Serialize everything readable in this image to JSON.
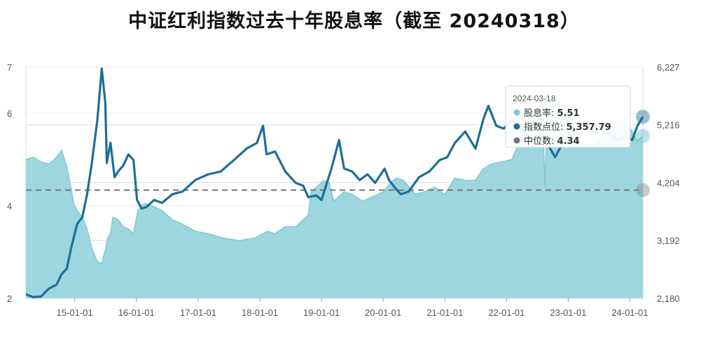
{
  "title": "中证红利指数过去十年股息率（截至 20240318）",
  "colors": {
    "dividend_fill": "#9dd6df",
    "dividend_line": "#7fc8d3",
    "index_line": "#1e6e96",
    "median_line": "#777777",
    "grid": "#d9dde2"
  },
  "tooltip": {
    "date": "2024-03-18",
    "rows": [
      {
        "label": "股息率:",
        "value": "5.51",
        "color": "#7fc8d3"
      },
      {
        "label": "指数点位:",
        "value": "5,357.79",
        "color": "#1e6e96"
      },
      {
        "label": "中位数:",
        "value": "4.34",
        "color": "#777777"
      }
    ]
  },
  "chart_data": {
    "type": "line",
    "title": "中证红利指数过去十年股息率（截至 20240318）",
    "x_ticks": [
      "15-01-01",
      "16-01-01",
      "17-01-01",
      "18-01-01",
      "19-01-01",
      "20-01-01",
      "21-01-01",
      "22-01-01",
      "23-01-01",
      "24-01-01"
    ],
    "y_left_ticks": [
      "2",
      "4",
      "6",
      "7"
    ],
    "y_left_range": [
      2,
      7
    ],
    "y_right_ticks": [
      "2,180",
      "3,192",
      "4,204",
      "5,216",
      "6,227"
    ],
    "y_right_range": [
      2180,
      6227
    ],
    "median": 4.34,
    "series": [
      {
        "name": "股息率",
        "axis": "left",
        "style": "area",
        "points": [
          [
            "2014-03-18",
            5.0
          ],
          [
            "2014-05-01",
            5.05
          ],
          [
            "2014-06-15",
            4.95
          ],
          [
            "2014-08-01",
            4.9
          ],
          [
            "2014-09-15",
            5.05
          ],
          [
            "2014-10-15",
            5.2
          ],
          [
            "2014-11-15",
            4.85
          ],
          [
            "2014-12-10",
            4.4
          ],
          [
            "2014-12-25",
            4.05
          ],
          [
            "2015-01-15",
            3.9
          ],
          [
            "2015-02-15",
            3.75
          ],
          [
            "2015-03-15",
            3.5
          ],
          [
            "2015-04-15",
            3.05
          ],
          [
            "2015-05-15",
            2.8
          ],
          [
            "2015-06-10",
            2.75
          ],
          [
            "2015-07-01",
            3.05
          ],
          [
            "2015-07-15",
            3.3
          ],
          [
            "2015-08-01",
            3.4
          ],
          [
            "2015-08-15",
            3.75
          ],
          [
            "2015-09-15",
            3.7
          ],
          [
            "2015-10-15",
            3.55
          ],
          [
            "2015-11-15",
            3.5
          ],
          [
            "2015-12-15",
            3.4
          ],
          [
            "2016-01-10",
            3.9
          ],
          [
            "2016-02-15",
            4.05
          ],
          [
            "2016-04-01",
            4.0
          ],
          [
            "2016-06-01",
            3.9
          ],
          [
            "2016-08-01",
            3.7
          ],
          [
            "2016-10-01",
            3.6
          ],
          [
            "2016-12-15",
            3.45
          ],
          [
            "2017-03-01",
            3.4
          ],
          [
            "2017-06-01",
            3.3
          ],
          [
            "2017-09-01",
            3.25
          ],
          [
            "2017-12-01",
            3.3
          ],
          [
            "2018-02-15",
            3.45
          ],
          [
            "2018-04-01",
            3.4
          ],
          [
            "2018-06-01",
            3.55
          ],
          [
            "2018-08-01",
            3.55
          ],
          [
            "2018-10-15",
            3.8
          ],
          [
            "2018-11-01",
            4.3
          ],
          [
            "2018-12-01",
            4.4
          ],
          [
            "2019-01-15",
            4.55
          ],
          [
            "2019-02-15",
            4.5
          ],
          [
            "2019-03-15",
            4.1
          ],
          [
            "2019-05-15",
            4.3
          ],
          [
            "2019-07-01",
            4.25
          ],
          [
            "2019-09-01",
            4.1
          ],
          [
            "2019-11-01",
            4.2
          ],
          [
            "2020-01-01",
            4.3
          ],
          [
            "2020-02-15",
            4.5
          ],
          [
            "2020-03-20",
            4.6
          ],
          [
            "2020-05-01",
            4.55
          ],
          [
            "2020-07-10",
            4.25
          ],
          [
            "2020-09-01",
            4.3
          ],
          [
            "2020-11-01",
            4.4
          ],
          [
            "2021-01-01",
            4.25
          ],
          [
            "2021-03-01",
            4.6
          ],
          [
            "2021-05-01",
            4.55
          ],
          [
            "2021-07-01",
            4.55
          ],
          [
            "2021-08-15",
            4.8
          ],
          [
            "2021-10-01",
            4.9
          ],
          [
            "2021-12-01",
            4.95
          ],
          [
            "2022-02-01",
            5.0
          ],
          [
            "2022-04-01",
            5.5
          ],
          [
            "2022-05-15",
            5.6
          ],
          [
            "2022-07-01",
            6.0
          ],
          [
            "2022-08-01",
            6.6
          ],
          [
            "2022-08-15",
            4.4
          ],
          [
            "2022-09-01",
            6.2
          ],
          [
            "2022-10-15",
            6.4
          ],
          [
            "2022-12-01",
            6.0
          ],
          [
            "2023-02-01",
            5.7
          ],
          [
            "2023-04-01",
            5.3
          ],
          [
            "2023-06-01",
            5.3
          ],
          [
            "2023-08-01",
            5.5
          ],
          [
            "2023-10-15",
            5.8
          ],
          [
            "2023-12-01",
            5.9
          ],
          [
            "2024-01-15",
            5.6
          ],
          [
            "2024-02-15",
            5.4
          ],
          [
            "2024-03-18",
            5.51
          ]
        ]
      },
      {
        "name": "指数点位",
        "axis": "right",
        "style": "line",
        "points": [
          [
            "2014-03-18",
            2250
          ],
          [
            "2014-05-01",
            2200
          ],
          [
            "2014-06-15",
            2210
          ],
          [
            "2014-08-01",
            2350
          ],
          [
            "2014-09-15",
            2420
          ],
          [
            "2014-10-15",
            2600
          ],
          [
            "2014-11-15",
            2700
          ],
          [
            "2014-12-10",
            3050
          ],
          [
            "2015-01-15",
            3480
          ],
          [
            "2015-02-15",
            3600
          ],
          [
            "2015-03-15",
            4000
          ],
          [
            "2015-04-10",
            4500
          ],
          [
            "2015-05-15",
            5300
          ],
          [
            "2015-06-10",
            6200
          ],
          [
            "2015-07-01",
            5600
          ],
          [
            "2015-07-10",
            4550
          ],
          [
            "2015-08-01",
            4900
          ],
          [
            "2015-08-25",
            4300
          ],
          [
            "2015-09-15",
            4400
          ],
          [
            "2015-10-15",
            4500
          ],
          [
            "2015-11-15",
            4700
          ],
          [
            "2015-12-15",
            4600
          ],
          [
            "2016-01-05",
            3900
          ],
          [
            "2016-02-01",
            3750
          ],
          [
            "2016-03-01",
            3780
          ],
          [
            "2016-04-15",
            3900
          ],
          [
            "2016-06-01",
            3850
          ],
          [
            "2016-08-01",
            4000
          ],
          [
            "2016-10-01",
            4050
          ],
          [
            "2016-12-15",
            4250
          ],
          [
            "2017-03-01",
            4350
          ],
          [
            "2017-05-15",
            4400
          ],
          [
            "2017-08-01",
            4600
          ],
          [
            "2017-10-15",
            4800
          ],
          [
            "2017-12-15",
            4900
          ],
          [
            "2018-01-20",
            5200
          ],
          [
            "2018-02-10",
            4700
          ],
          [
            "2018-04-01",
            4750
          ],
          [
            "2018-06-01",
            4400
          ],
          [
            "2018-08-01",
            4200
          ],
          [
            "2018-09-15",
            4150
          ],
          [
            "2018-10-15",
            3950
          ],
          [
            "2018-12-01",
            3980
          ],
          [
            "2019-01-01",
            3900
          ],
          [
            "2019-03-01",
            4450
          ],
          [
            "2019-04-15",
            4950
          ],
          [
            "2019-05-15",
            4450
          ],
          [
            "2019-07-01",
            4400
          ],
          [
            "2019-08-15",
            4250
          ],
          [
            "2019-10-01",
            4350
          ],
          [
            "2019-11-15",
            4200
          ],
          [
            "2020-01-10",
            4450
          ],
          [
            "2020-02-05",
            4250
          ],
          [
            "2020-03-15",
            4100
          ],
          [
            "2020-04-15",
            4000
          ],
          [
            "2020-06-01",
            4050
          ],
          [
            "2020-08-01",
            4300
          ],
          [
            "2020-10-01",
            4400
          ],
          [
            "2020-12-01",
            4600
          ],
          [
            "2021-01-15",
            4650
          ],
          [
            "2021-03-01",
            4900
          ],
          [
            "2021-05-01",
            5100
          ],
          [
            "2021-07-01",
            4800
          ],
          [
            "2021-08-15",
            5300
          ],
          [
            "2021-09-15",
            5550
          ],
          [
            "2021-11-01",
            5200
          ],
          [
            "2021-12-15",
            5150
          ],
          [
            "2022-02-01",
            5300
          ],
          [
            "2022-04-15",
            5100
          ],
          [
            "2022-06-01",
            4950
          ],
          [
            "2022-08-01",
            5050
          ],
          [
            "2022-10-15",
            4650
          ],
          [
            "2022-12-01",
            4900
          ],
          [
            "2023-02-01",
            5050
          ],
          [
            "2023-04-01",
            5250
          ],
          [
            "2023-06-01",
            5100
          ],
          [
            "2023-08-01",
            5150
          ],
          [
            "2023-10-15",
            4950
          ],
          [
            "2023-12-01",
            5000
          ],
          [
            "2024-01-15",
            4950
          ],
          [
            "2024-02-15",
            5200
          ],
          [
            "2024-03-18",
            5357.79
          ]
        ]
      },
      {
        "name": "中位数",
        "axis": "left",
        "style": "dashed",
        "points": [
          [
            "2014-03-18",
            4.34
          ],
          [
            "2024-03-18",
            4.34
          ]
        ]
      }
    ]
  }
}
